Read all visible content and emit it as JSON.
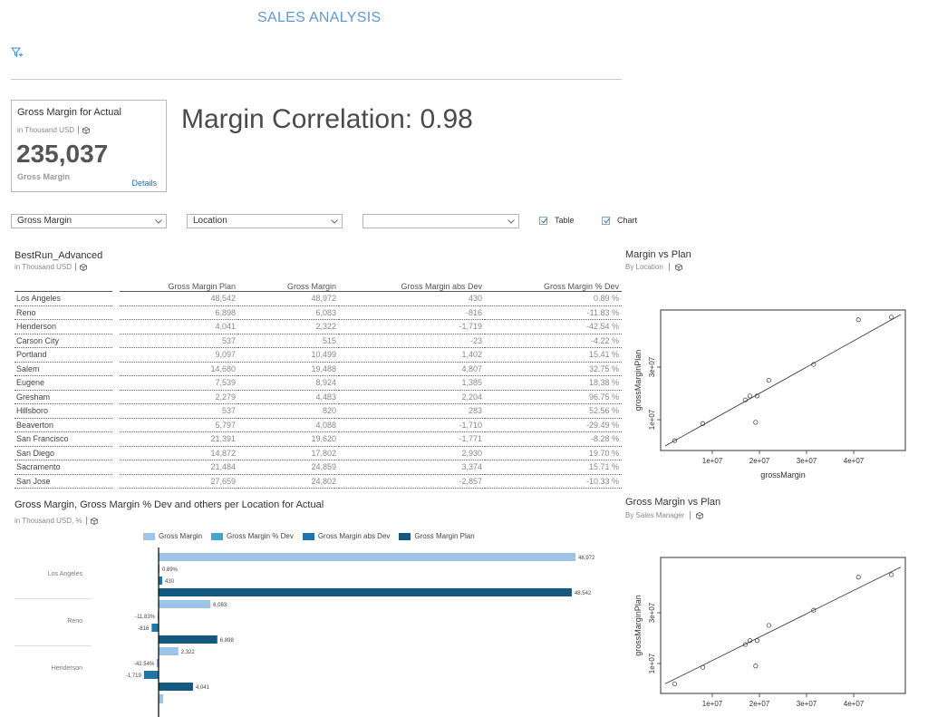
{
  "app": {
    "title": "SALES ANALYSIS"
  },
  "kpi": {
    "title": "Gross Margin for Actual",
    "unit": "in Thousand USD",
    "value": "235,037",
    "label": "Gross Margin",
    "details": "Details"
  },
  "correlation": {
    "text": "Margin Correlation: 0.98"
  },
  "controls": {
    "measure_select": "Gross Margin",
    "dimension_select": "Location",
    "third_select": "",
    "table_check": "Table",
    "chart_check": "Chart"
  },
  "table": {
    "title": "BestRun_Advanced",
    "unit": "in Thousand USD",
    "headers": [
      "Gross Margin Plan",
      "Gross Margin",
      "Gross Margin abs Dev",
      "Gross Margin % Dev"
    ],
    "rows": [
      {
        "loc": "Los Angeles",
        "plan": "48,542",
        "gm": "48,972",
        "abs": "430",
        "pct": "0.89 %"
      },
      {
        "loc": "Reno",
        "plan": "6,898",
        "gm": "6,083",
        "abs": "-816",
        "pct": "-11.83 %"
      },
      {
        "loc": "Henderson",
        "plan": "4,041",
        "gm": "2,322",
        "abs": "-1,719",
        "pct": "-42.54 %"
      },
      {
        "loc": "Carson City",
        "plan": "537",
        "gm": "515",
        "abs": "-23",
        "pct": "-4.22 %"
      },
      {
        "loc": "Portland",
        "plan": "9,097",
        "gm": "10,499",
        "abs": "1,402",
        "pct": "15.41 %"
      },
      {
        "loc": "Salem",
        "plan": "14,680",
        "gm": "19,488",
        "abs": "4,807",
        "pct": "32.75 %"
      },
      {
        "loc": "Eugene",
        "plan": "7,539",
        "gm": "8,924",
        "abs": "1,385",
        "pct": "18.38 %"
      },
      {
        "loc": "Gresham",
        "plan": "2,279",
        "gm": "4,483",
        "abs": "2,204",
        "pct": "96.75 %"
      },
      {
        "loc": "Hillsboro",
        "plan": "537",
        "gm": "820",
        "abs": "283",
        "pct": "52.56 %"
      },
      {
        "loc": "Beaverton",
        "plan": "5,797",
        "gm": "4,088",
        "abs": "-1,710",
        "pct": "-29.49 %"
      },
      {
        "loc": "San Francisco",
        "plan": "21,391",
        "gm": "19,620",
        "abs": "-1,771",
        "pct": "-8.28 %"
      },
      {
        "loc": "San Diego",
        "plan": "14,872",
        "gm": "17,802",
        "abs": "2,930",
        "pct": "19.70 %"
      },
      {
        "loc": "Sacramento",
        "plan": "21,484",
        "gm": "24,859",
        "abs": "3,374",
        "pct": "15.71 %"
      },
      {
        "loc": "San Jose",
        "plan": "27,659",
        "gm": "24,802",
        "abs": "-2,857",
        "pct": "-10.33 %"
      }
    ]
  },
  "scatter1": {
    "title": "Margin vs Plan",
    "subtitle": "By Location"
  },
  "scatter2": {
    "title": "Gross Margin vs Plan",
    "subtitle": "By Sales Manager"
  },
  "barchart": {
    "title": "Gross Margin, Gross Margin % Dev and others per Location for Actual",
    "unit": "in Thousand USD, %"
  },
  "colors": {
    "gm": "#9dc3e6",
    "pct": "#4a9fd4",
    "abs": "#1f77a8",
    "plan": "#15587f"
  },
  "chart_data": [
    {
      "type": "scatter",
      "title": "Margin vs Plan",
      "xlabel": "grossMargin",
      "ylabel": "grossMarginPlan",
      "xticks": [
        "1e+07",
        "2e+07",
        "3e+07",
        "4e+07"
      ],
      "yticks": [
        "1e+07",
        "3e+07"
      ],
      "xlim": [
        0,
        50000000
      ],
      "ylim": [
        0,
        50000000
      ],
      "trendline": [
        [
          0,
          0
        ],
        [
          50000000,
          50000000
        ]
      ],
      "points": [
        [
          2000000,
          2000000
        ],
        [
          8000000,
          8500000
        ],
        [
          17000000,
          17500000
        ],
        [
          18000000,
          19000000
        ],
        [
          19500000,
          19000000
        ],
        [
          19200000,
          9000000
        ],
        [
          22000000,
          25000000
        ],
        [
          31500000,
          31000000
        ],
        [
          41000000,
          48000000
        ],
        [
          48000000,
          49000000
        ]
      ]
    },
    {
      "type": "scatter",
      "title": "Gross Margin vs Plan",
      "xlabel": "",
      "ylabel": "grossMarginPlan",
      "xticks": [
        "1e+07",
        "2e+07",
        "3e+07",
        "4e+07"
      ],
      "yticks": [
        "1e+07",
        "3e+07"
      ],
      "xlim": [
        0,
        50000000
      ],
      "ylim": [
        0,
        50000000
      ],
      "trendline": [
        [
          0,
          2000000
        ],
        [
          50000000,
          48000000
        ]
      ],
      "points": [
        [
          2000000,
          2000000
        ],
        [
          8000000,
          8500000
        ],
        [
          17000000,
          17500000
        ],
        [
          18000000,
          19000000
        ],
        [
          19500000,
          19000000
        ],
        [
          19200000,
          9000000
        ],
        [
          22000000,
          25000000
        ],
        [
          31500000,
          31000000
        ],
        [
          41000000,
          44000000
        ],
        [
          48000000,
          45000000
        ]
      ]
    },
    {
      "type": "bar",
      "title": "Gross Margin, Gross Margin % Dev and others per Location for Actual",
      "categories": [
        "Los Angeles",
        "Reno",
        "Henderson"
      ],
      "series": [
        {
          "name": "Gross Margin",
          "values": [
            48972,
            6083,
            2322
          ],
          "labels": [
            "48,972",
            "6,083",
            "2,322"
          ]
        },
        {
          "name": "Gross Margin % Dev",
          "values": [
            0.89,
            -11.83,
            -42.54
          ],
          "labels": [
            "0.89%",
            "-11.83%",
            "-42.54%"
          ]
        },
        {
          "name": "Gross Margin abs Dev",
          "values": [
            430,
            -816,
            -1719
          ],
          "labels": [
            "430",
            "-816",
            "-1,719"
          ]
        },
        {
          "name": "Gross Margin Plan",
          "values": [
            48542,
            6898,
            4041
          ],
          "labels": [
            "48,542",
            "6,898",
            "4,041"
          ]
        }
      ],
      "xlim": [
        -2000,
        50000
      ]
    }
  ]
}
